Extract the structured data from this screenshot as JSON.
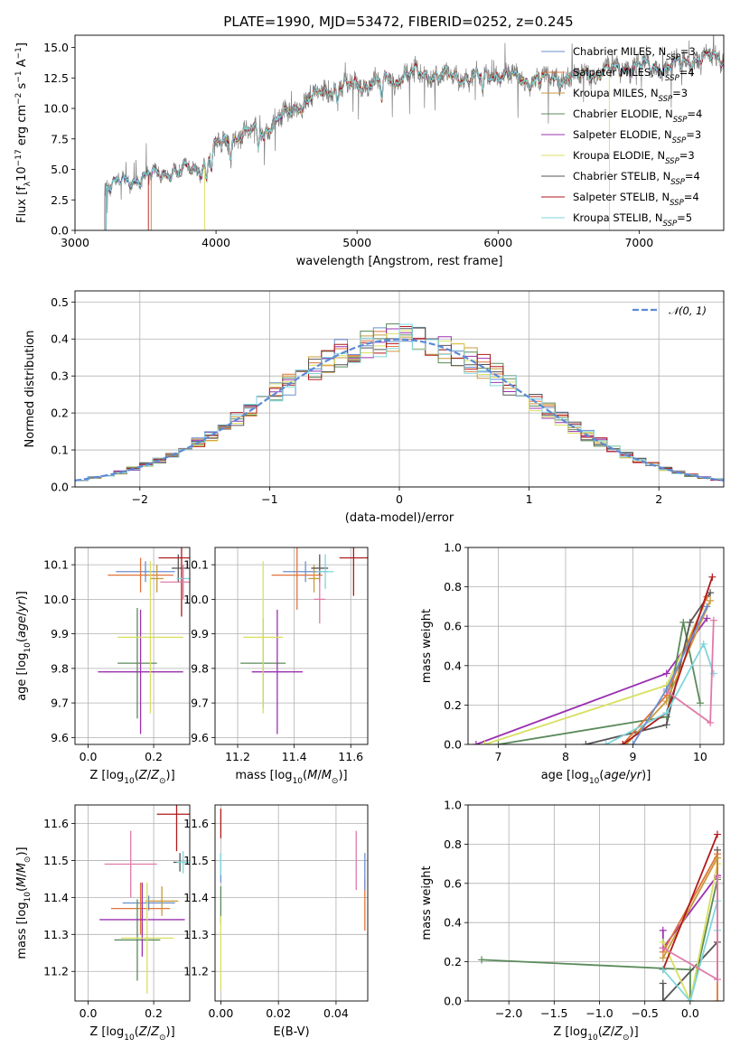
{
  "title": "PLATE=1990, MJD=53472, FIBERID=0252, z=0.245",
  "colors": {
    "Chabrier MILES": "#6a8fd0",
    "Salpeter MILES": "#e0743a",
    "Kroupa MILES": "#c89a3c",
    "Chabrier ELODIE": "#5b8a5a",
    "Salpeter ELODIE": "#9b30b0",
    "Kroupa ELODIE": "#d8e060",
    "Chabrier STELIB": "#555555",
    "Salpeter STELIB": "#b01a1a",
    "Kroupa STELIB": "#7fd6dc",
    "extra_pink": "#e07aa8",
    "gaussian": "#5b8ad6"
  },
  "legend": {
    "spectrum": [
      {
        "label": "Chabrier MILES, N",
        "sub": "SSP",
        "tail": "=3",
        "key": "Chabrier MILES"
      },
      {
        "label": "Salpeter MILES, N",
        "sub": "SSP",
        "tail": "=4",
        "key": "Salpeter MILES"
      },
      {
        "label": "Kroupa MILES, N",
        "sub": "SSP",
        "tail": "=3",
        "key": "Kroupa MILES"
      },
      {
        "label": "Chabrier ELODIE, N",
        "sub": "SSP",
        "tail": "=4",
        "key": "Chabrier ELODIE"
      },
      {
        "label": "Salpeter ELODIE, N",
        "sub": "SSP",
        "tail": "=3",
        "key": "Salpeter ELODIE"
      },
      {
        "label": "Kroupa ELODIE, N",
        "sub": "SSP",
        "tail": "=3",
        "key": "Kroupa ELODIE"
      },
      {
        "label": "Chabrier STELIB, N",
        "sub": "SSP",
        "tail": "=4",
        "key": "Chabrier STELIB"
      },
      {
        "label": "Salpeter STELIB, N",
        "sub": "SSP",
        "tail": "=4",
        "key": "Salpeter STELIB"
      },
      {
        "label": "Kroupa STELIB, N",
        "sub": "SSP",
        "tail": "=5",
        "key": "Kroupa STELIB"
      }
    ],
    "hist": "𝒩(0, 1)"
  },
  "chart_data": [
    {
      "id": "spectrum",
      "type": "line",
      "xlabel": "wavelength [Angstrom, rest frame]",
      "ylabel": "Flux [f_λ 10^-17 erg cm^-2 s^-1 A^-1]",
      "xlim": [
        3000,
        7600
      ],
      "ylim": [
        0,
        16
      ],
      "xticks": [
        "3000",
        "4000",
        "5000",
        "6000",
        "7000"
      ],
      "yticks": [
        "0.0",
        "2.5",
        "5.0",
        "7.5",
        "10.0",
        "12.5",
        "15.0"
      ],
      "observed_start": 3210,
      "continuum": [
        [
          3210,
          3.6
        ],
        [
          3500,
          4.4
        ],
        [
          3700,
          4.9
        ],
        [
          3900,
          5.1
        ],
        [
          4000,
          7.0
        ],
        [
          4200,
          7.9
        ],
        [
          4400,
          8.7
        ],
        [
          4600,
          10.3
        ],
        [
          4800,
          11.6
        ],
        [
          5000,
          11.9
        ],
        [
          5200,
          12.3
        ],
        [
          5400,
          12.9
        ],
        [
          5600,
          12.7
        ],
        [
          5800,
          12.5
        ],
        [
          6000,
          12.8
        ],
        [
          6200,
          12.3
        ],
        [
          6400,
          12.4
        ],
        [
          6600,
          12.8
        ],
        [
          6800,
          13.1
        ],
        [
          7000,
          13.5
        ],
        [
          7200,
          13.3
        ],
        [
          7400,
          14.1
        ]
      ],
      "model_start": {
        "Salpeter MILES": 3540,
        "Kroupa ELODIE": 3920,
        "Salpeter STELIB": 3520,
        "Chabrier ELODIE": 3220,
        "Kroupa MILES": 3220,
        "Chabrier STELIB": 3220,
        "Kroupa STELIB": 3220,
        "Chabrier MILES": 3220,
        "Salpeter ELODIE": 3220
      },
      "model_end": {
        "Kroupa ELODIE": 6790
      }
    },
    {
      "id": "residuals",
      "type": "histogram",
      "xlabel": "(data-model)/error",
      "ylabel": "Normed distribution",
      "xlim": [
        -2.5,
        2.5
      ],
      "ylim": [
        0,
        0.53
      ],
      "xticks": [
        "−2",
        "−1",
        "0",
        "1",
        "2"
      ],
      "yticks": [
        "0.0",
        "0.1",
        "0.2",
        "0.3",
        "0.4",
        "0.5"
      ],
      "bin_width": 0.1,
      "gaussian": {
        "mu": 0,
        "sigma": 1
      }
    },
    {
      "id": "age-vs-Z",
      "type": "scatter",
      "xlabel": "Z [log10(Z/Z⊙)]",
      "ylabel": "age [log10(age/yr)]",
      "xlim": [
        -0.04,
        0.31
      ],
      "ylim": [
        9.58,
        10.15
      ],
      "xticks": [
        "0.0",
        "0.2"
      ],
      "yticks": [
        "9.6",
        "9.7",
        "9.8",
        "9.9",
        "10.0",
        "10.1"
      ],
      "points": [
        {
          "key": "Chabrier MILES",
          "x": 0.175,
          "y": 10.08,
          "xerr": 0.09,
          "yerr": 0.03
        },
        {
          "key": "Salpeter MILES",
          "x": 0.16,
          "y": 10.07,
          "xerr": 0.1,
          "yerr": 0.05
        },
        {
          "key": "Kroupa MILES",
          "x": 0.21,
          "y": 10.06,
          "xerr": 0.02,
          "yerr": 0.04
        },
        {
          "key": "Chabrier ELODIE",
          "x": 0.15,
          "y": 9.815,
          "xerr": 0.06,
          "yerr": 0.16
        },
        {
          "key": "Salpeter ELODIE",
          "x": 0.16,
          "y": 9.79,
          "xerr": 0.13,
          "yerr": 0.18
        },
        {
          "key": "Kroupa ELODIE",
          "x": 0.19,
          "y": 9.89,
          "xerr": 0.1,
          "yerr": 0.22
        },
        {
          "key": "Chabrier STELIB",
          "x": 0.275,
          "y": 10.09,
          "xerr": 0.02,
          "yerr": 0.04
        },
        {
          "key": "Salpeter STELIB",
          "x": 0.285,
          "y": 10.12,
          "xerr": 0.07,
          "yerr": 0.17
        },
        {
          "key": "Kroupa STELIB",
          "x": 0.29,
          "y": 10.06,
          "xerr": 0.02,
          "yerr": 0.04
        },
        {
          "key": "extra_pink",
          "x": 0.29,
          "y": 10.05,
          "xerr": 0.07,
          "yerr": 0.05
        }
      ]
    },
    {
      "id": "age-vs-mass",
      "type": "scatter",
      "xlabel": "mass [log10(M/M⊙)]",
      "ylabel": "",
      "xlim": [
        11.12,
        11.66
      ],
      "ylim": [
        9.58,
        10.15
      ],
      "xticks": [
        "11.2",
        "11.4",
        "11.6"
      ],
      "yticks": [
        "9.6",
        "9.7",
        "9.8",
        "9.9",
        "10.0",
        "10.1"
      ],
      "points": [
        {
          "key": "Chabrier MILES",
          "x": 11.44,
          "y": 10.08,
          "xerr": 0.08,
          "yerr": 0.03
        },
        {
          "key": "Salpeter MILES",
          "x": 11.41,
          "y": 10.07,
          "xerr": 0.09,
          "yerr": 0.1
        },
        {
          "key": "Kroupa MILES",
          "x": 11.47,
          "y": 10.06,
          "xerr": 0.02,
          "yerr": 0.04
        },
        {
          "key": "Chabrier ELODIE",
          "x": 11.29,
          "y": 9.815,
          "xerr": 0.08,
          "yerr": 0.13
        },
        {
          "key": "Salpeter ELODIE",
          "x": 11.34,
          "y": 9.79,
          "xerr": 0.09,
          "yerr": 0.18
        },
        {
          "key": "Kroupa ELODIE",
          "x": 11.29,
          "y": 9.89,
          "xerr": 0.07,
          "yerr": 0.22
        },
        {
          "key": "Chabrier STELIB",
          "x": 11.49,
          "y": 10.09,
          "xerr": 0.03,
          "yerr": 0.04
        },
        {
          "key": "Salpeter STELIB",
          "x": 11.61,
          "y": 10.12,
          "xerr": 0.05,
          "yerr": 0.11
        },
        {
          "key": "Kroupa STELIB",
          "x": 11.51,
          "y": 10.08,
          "xerr": 0.03,
          "yerr": 0.05
        },
        {
          "key": "extra_pink",
          "x": 11.49,
          "y": 10.0,
          "xerr": 0.02,
          "yerr": 0.07
        }
      ]
    },
    {
      "id": "weight-vs-age",
      "type": "line",
      "xlabel": "age [log10(age/yr)]",
      "ylabel": "mass weight",
      "xlim": [
        6.55,
        10.35
      ],
      "ylim": [
        0,
        1
      ],
      "xticks": [
        "7",
        "8",
        "9",
        "10"
      ],
      "yticks": [
        "0.0",
        "0.2",
        "0.4",
        "0.6",
        "0.8",
        "1.0"
      ],
      "series": [
        {
          "key": "Salpeter ELODIE",
          "x": [
            6.67,
            9.5,
            10.1
          ],
          "y": [
            0.0,
            0.36,
            0.64
          ]
        },
        {
          "key": "Kroupa ELODIE",
          "x": [
            6.8,
            9.5,
            10.05
          ],
          "y": [
            0.0,
            0.3,
            0.7
          ]
        },
        {
          "key": "Chabrier ELODIE",
          "x": [
            7.0,
            9.5,
            9.75,
            10.0
          ],
          "y": [
            0.0,
            0.14,
            0.62,
            0.21
          ]
        },
        {
          "key": "Chabrier STELIB",
          "x": [
            8.3,
            9.5,
            9.85,
            10.15
          ],
          "y": [
            0.0,
            0.1,
            0.62,
            0.77
          ]
        },
        {
          "key": "Salpeter MILES",
          "x": [
            8.85,
            9.5,
            10.1
          ],
          "y": [
            0.0,
            0.25,
            0.75
          ]
        },
        {
          "key": "Kroupa MILES",
          "x": [
            8.9,
            9.5,
            10.15
          ],
          "y": [
            0.0,
            0.22,
            0.73
          ]
        },
        {
          "key": "Salpeter STELIB",
          "x": [
            8.85,
            9.5,
            10.18
          ],
          "y": [
            0.0,
            0.16,
            0.85
          ]
        },
        {
          "key": "Kroupa STELIB",
          "x": [
            8.6,
            9.5,
            10.05,
            10.2
          ],
          "y": [
            0.0,
            0.16,
            0.51,
            0.36
          ]
        },
        {
          "key": "extra_pink",
          "x": [
            9.5,
            10.15,
            10.2
          ],
          "y": [
            0.27,
            0.11,
            0.63
          ]
        },
        {
          "key": "Chabrier MILES",
          "x": [
            9.0,
            9.5,
            10.1
          ],
          "y": [
            0.0,
            0.28,
            0.7
          ]
        }
      ]
    },
    {
      "id": "mass-vs-Z",
      "type": "scatter",
      "xlabel": "Z [log10(Z/Z⊙)]",
      "ylabel": "mass [log10(M/M⊙)]",
      "xlim": [
        -0.04,
        0.31
      ],
      "ylim": [
        11.12,
        11.65
      ],
      "xticks": [
        "0.0",
        "0.2"
      ],
      "yticks": [
        "11.2",
        "11.3",
        "11.4",
        "11.5",
        "11.6"
      ],
      "points": [
        {
          "key": "Chabrier MILES",
          "x": 0.185,
          "y": 11.385,
          "xerr": 0.08,
          "yerr": 0.02
        },
        {
          "key": "Salpeter MILES",
          "x": 0.16,
          "y": 11.37,
          "xerr": 0.09,
          "yerr": 0.07
        },
        {
          "key": "Kroupa MILES",
          "x": 0.225,
          "y": 11.39,
          "xerr": 0.05,
          "yerr": 0.04
        },
        {
          "key": "Chabrier ELODIE",
          "x": 0.15,
          "y": 11.285,
          "xerr": 0.07,
          "yerr": 0.11
        },
        {
          "key": "Salpeter ELODIE",
          "x": 0.165,
          "y": 11.34,
          "xerr": 0.13,
          "yerr": 0.1
        },
        {
          "key": "Kroupa ELODIE",
          "x": 0.18,
          "y": 11.29,
          "xerr": 0.08,
          "yerr": 0.15
        },
        {
          "key": "Chabrier STELIB",
          "x": 0.28,
          "y": 11.495,
          "xerr": 0.02,
          "yerr": 0.025
        },
        {
          "key": "Salpeter STELIB",
          "x": 0.27,
          "y": 11.625,
          "xerr": 0.06,
          "yerr": 0.1
        },
        {
          "key": "Kroupa STELIB",
          "x": 0.29,
          "y": 11.495,
          "xerr": 0.02,
          "yerr": 0.03
        },
        {
          "key": "extra_pink",
          "x": 0.13,
          "y": 11.49,
          "xerr": 0.08,
          "yerr": 0.09
        }
      ]
    },
    {
      "id": "mass-vs-EBV",
      "type": "scatter",
      "xlabel": "E(B-V)",
      "ylabel": "",
      "xlim": [
        -0.002,
        0.051
      ],
      "ylim": [
        11.12,
        11.65
      ],
      "xticks": [
        "0.00",
        "0.02",
        "0.04"
      ],
      "yticks": [
        "11.2",
        "11.3",
        "11.4",
        "11.5",
        "11.6"
      ],
      "points": [
        {
          "key": "Salpeter STELIB",
          "x": 0.0,
          "y": 11.6,
          "xerr": 0.0,
          "yerr": 0.04
        },
        {
          "key": "Chabrier MILES",
          "x": 0.0,
          "y": 11.48,
          "xerr": 0.0,
          "yerr": 0.04
        },
        {
          "key": "Kroupa STELIB",
          "x": 0.0,
          "y": 11.49,
          "xerr": 0.0,
          "yerr": 0.03
        },
        {
          "key": "Chabrier ELODIE",
          "x": 0.0,
          "y": 11.38,
          "xerr": 0.0,
          "yerr": 0.05
        },
        {
          "key": "Kroupa ELODIE",
          "x": 0.0,
          "y": 11.25,
          "xerr": 0.0,
          "yerr": 0.1
        },
        {
          "key": "extra_pink",
          "x": 0.047,
          "y": 11.5,
          "xerr": 0.0,
          "yerr": 0.08
        },
        {
          "key": "Salpeter MILES",
          "x": 0.05,
          "y": 11.38,
          "xerr": 0.0,
          "yerr": 0.07
        },
        {
          "key": "Chabrier MILES",
          "x": 0.05,
          "y": 11.47,
          "xerr": 0.0,
          "yerr": 0.05
        }
      ]
    },
    {
      "id": "weight-vs-Z",
      "type": "line",
      "xlabel": "Z [log10(Z/Z⊙)]",
      "ylabel": "mass weight",
      "xlim": [
        -2.45,
        0.37
      ],
      "ylim": [
        0,
        1
      ],
      "xticks": [
        "−2.0",
        "−1.5",
        "−1.0",
        "−0.5",
        "0.0"
      ],
      "yticks": [
        "0.0",
        "0.2",
        "0.4",
        "0.6",
        "0.8",
        "1.0"
      ],
      "series": [
        {
          "key": "Chabrier ELODIE",
          "x": [
            -2.3,
            0.0,
            0.0,
            0.3
          ],
          "y": [
            0.21,
            0.16,
            0.0,
            0.62
          ]
        },
        {
          "key": "Chabrier STELIB",
          "x": [
            -0.3,
            -0.3,
            0.3,
            0.3
          ],
          "y": [
            0.09,
            0.0,
            0.3,
            0.77
          ]
        },
        {
          "key": "Salpeter ELODIE",
          "x": [
            -0.3,
            -0.3,
            0.3
          ],
          "y": [
            0.36,
            0.27,
            0.64
          ]
        },
        {
          "key": "Kroupa ELODIE",
          "x": [
            -0.3,
            0.0,
            0.3
          ],
          "y": [
            0.3,
            0.0,
            0.7
          ]
        },
        {
          "key": "Salpeter MILES",
          "x": [
            -0.3,
            0.3,
            0.3
          ],
          "y": [
            0.25,
            0.75,
            0.0
          ]
        },
        {
          "key": "Kroupa MILES",
          "x": [
            -0.3,
            0.3
          ],
          "y": [
            0.22,
            0.73
          ]
        },
        {
          "key": "Salpeter STELIB",
          "x": [
            -0.3,
            0.3
          ],
          "y": [
            0.16,
            0.85
          ]
        },
        {
          "key": "Kroupa STELIB",
          "x": [
            -0.3,
            0.0,
            0.3,
            0.3
          ],
          "y": [
            0.16,
            0.0,
            0.51,
            0.36
          ]
        },
        {
          "key": "extra_pink",
          "x": [
            -0.3,
            0.3,
            0.3
          ],
          "y": [
            0.27,
            0.11,
            0.63
          ]
        }
      ]
    }
  ]
}
